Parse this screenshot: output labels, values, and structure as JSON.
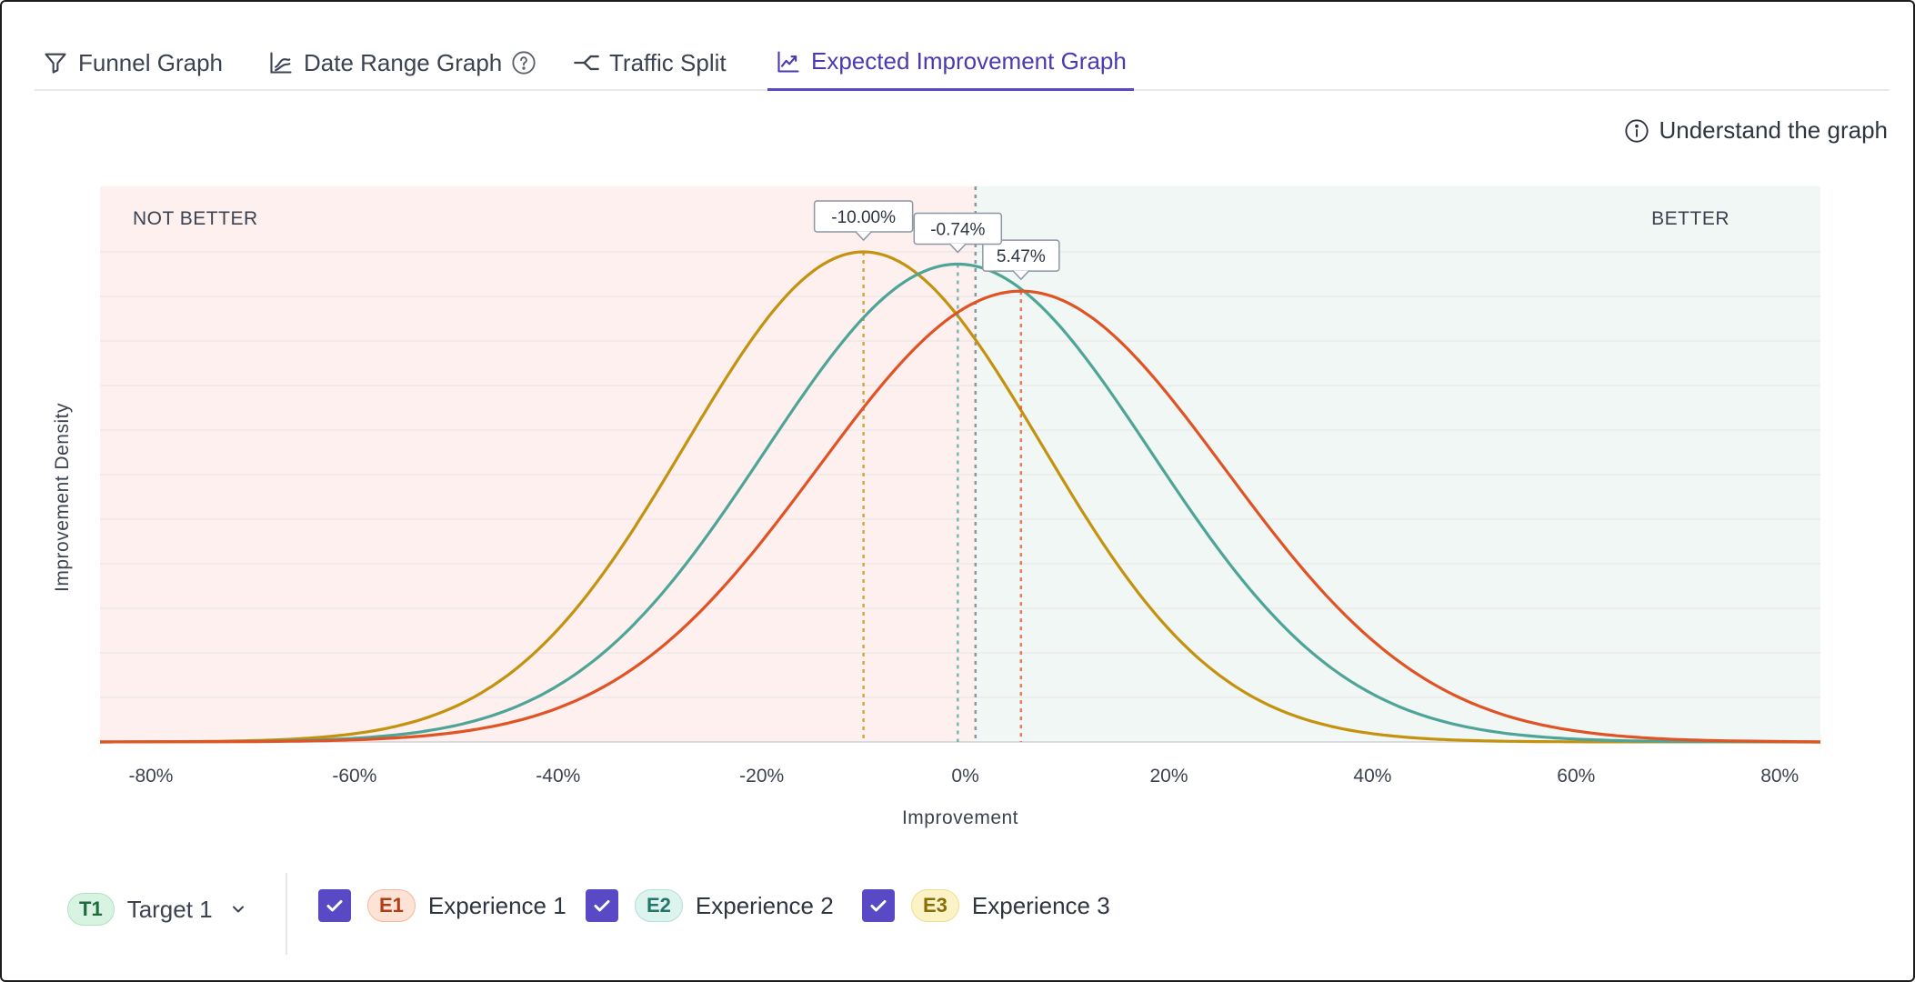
{
  "tabs": [
    {
      "label": "Funnel Graph",
      "icon": "funnel-icon"
    },
    {
      "label": "Date Range Graph",
      "icon": "date-range-graph-icon"
    },
    {
      "label": "Traffic Split",
      "icon": "split-icon"
    },
    {
      "label": "Expected Improvement Graph",
      "icon": "line-chart-icon"
    }
  ],
  "active_tab": 3,
  "understand_label": "Understand the graph",
  "footer": {
    "target_badge": "T1",
    "target_label": "Target 1",
    "experiences": [
      {
        "badge": "E1",
        "label": "Experience 1",
        "checked": true
      },
      {
        "badge": "E2",
        "label": "Experience 2",
        "checked": true
      },
      {
        "badge": "E3",
        "label": "Experience 3",
        "checked": true
      }
    ]
  },
  "colors": {
    "accent": "#5a49c4",
    "not_better_bg": "#fdf0ef",
    "better_bg": "#f0f7f4",
    "e1": "#e05324",
    "e2": "#4ea597",
    "e3": "#c4920f"
  },
  "chart_data": {
    "type": "line",
    "xlabel": "Improvement",
    "ylabel": "Improvement Density",
    "region_labels": {
      "left": "NOT BETTER",
      "right": "BETTER"
    },
    "xlim": [
      -85,
      84
    ],
    "x_ticks": [
      -80,
      -60,
      -40,
      -20,
      0,
      20,
      40,
      60,
      80
    ],
    "x_tick_labels": [
      "-80%",
      "-60%",
      "-40%",
      "-20%",
      "0%",
      "20%",
      "40%",
      "60%",
      "80%"
    ],
    "zero_line": 1,
    "grid": true,
    "series": [
      {
        "name": "Experience 1",
        "color_key": "e1",
        "mean": 5.47,
        "sd": 20,
        "peak": 0.92,
        "x_range": [
          -70,
          75
        ],
        "peak_label": "5.47%"
      },
      {
        "name": "Experience 2",
        "color_key": "e2",
        "mean": -0.74,
        "sd": 19,
        "peak": 0.975,
        "x_range": [
          -75,
          70
        ],
        "peak_label": "-0.74%"
      },
      {
        "name": "Experience 3",
        "color_key": "e3",
        "mean": -10.0,
        "sd": 17.5,
        "peak": 1.0,
        "x_range": [
          -75,
          65
        ],
        "peak_label": "-10.00%"
      }
    ]
  }
}
